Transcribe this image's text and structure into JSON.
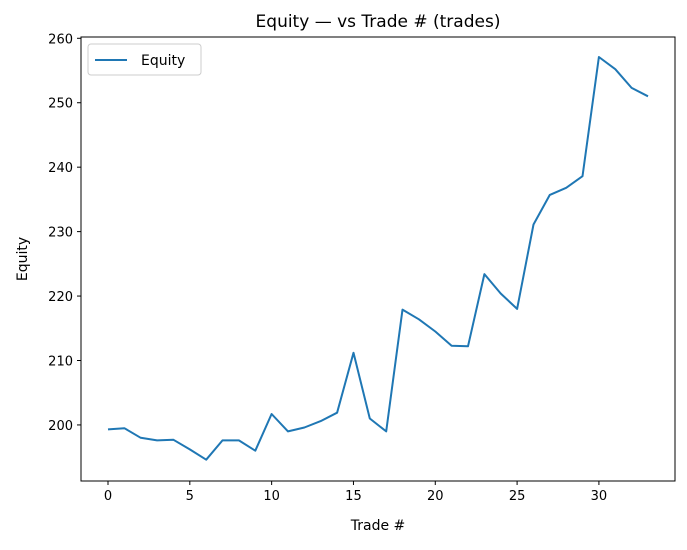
{
  "chart_data": {
    "type": "line",
    "title": "Equity — vs Trade # (trades)",
    "xlabel": "Trade #",
    "ylabel": "Equity",
    "xlim": [
      -1.65,
      34.65
    ],
    "ylim": [
      191.3,
      260.2
    ],
    "xticks": [
      0,
      5,
      10,
      15,
      20,
      25,
      30
    ],
    "yticks": [
      200,
      210,
      220,
      230,
      240,
      250,
      260
    ],
    "grid": false,
    "legend": "top-left",
    "series": [
      {
        "name": "Equity",
        "color": "#1f77b4",
        "x": [
          0,
          1,
          2,
          3,
          4,
          5,
          6,
          7,
          8,
          9,
          10,
          11,
          12,
          13,
          14,
          15,
          16,
          17,
          18,
          19,
          20,
          21,
          22,
          23,
          24,
          25,
          26,
          27,
          28,
          29,
          30,
          31,
          32,
          33
        ],
        "y": [
          199.3,
          199.5,
          198.0,
          197.6,
          197.7,
          196.2,
          194.6,
          197.6,
          197.6,
          196.0,
          201.7,
          199.0,
          199.6,
          200.6,
          201.9,
          211.2,
          201.0,
          199.0,
          217.9,
          216.4,
          214.5,
          212.3,
          212.2,
          223.4,
          220.4,
          218.0,
          231.1,
          235.7,
          236.8,
          238.6,
          257.1,
          255.2,
          252.3,
          251.0
        ]
      }
    ]
  }
}
